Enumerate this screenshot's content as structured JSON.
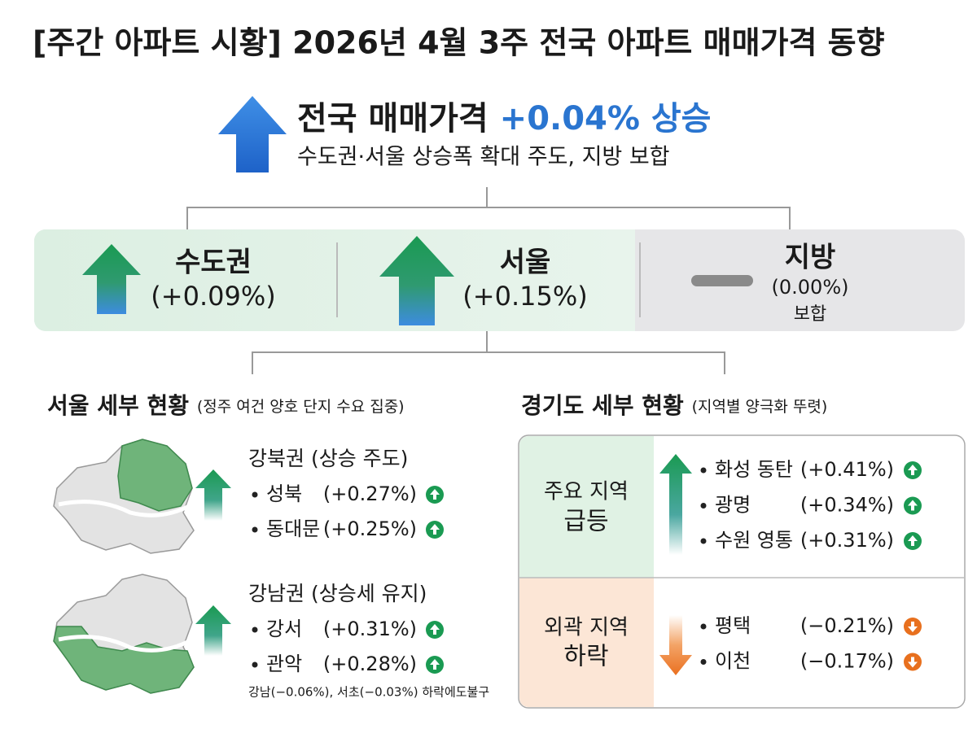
{
  "header": {
    "title": "[주간 아파트 시황] 2026년 4월 3주 전국 아파트 매매가격 동향"
  },
  "national": {
    "label": "전국 매매가격",
    "change": "+0.04% 상승",
    "subtitle": "수도권·서울 상승폭 확대 주도, 지방 보합"
  },
  "regions": [
    {
      "name": "수도권",
      "change": "(+0.09%)"
    },
    {
      "name": "서울",
      "change": "(+0.15%)"
    },
    {
      "name": "지방",
      "change": "(0.00%)",
      "note": "보합"
    }
  ],
  "seoul": {
    "title": "서울 세부 현황",
    "subtitle": "(정주 여건 양호 단지 수요 집중)",
    "groups": [
      {
        "name": "강북권 (상승 주도)",
        "items": [
          {
            "name": "성북",
            "change": "(+0.27%)"
          },
          {
            "name": "동대문",
            "change": "(+0.25%)"
          }
        ]
      },
      {
        "name": "강남권 (상승세 유지)",
        "items": [
          {
            "name": "강서",
            "change": "(+0.31%)"
          },
          {
            "name": "관악",
            "change": "(+0.28%)"
          }
        ]
      }
    ],
    "note": "강남(−0.06%), 서초(−0.03%) 하락에도불구"
  },
  "gyeonggi": {
    "title": "경기도 세부 현황",
    "subtitle": "(지역별 양극화 뚜렷)",
    "groups": [
      {
        "label": "주요 지역",
        "status": "급등",
        "items": [
          {
            "name": "화성 동탄",
            "change": "(+0.41%)"
          },
          {
            "name": "광명",
            "change": "(+0.34%)"
          },
          {
            "name": "수원 영통",
            "change": "(+0.31%)"
          }
        ]
      },
      {
        "label": "외곽 지역",
        "status": "하락",
        "items": [
          {
            "name": "평택",
            "change": "(−0.21%)"
          },
          {
            "name": "이천",
            "change": "(−0.17%)"
          }
        ]
      }
    ]
  }
}
